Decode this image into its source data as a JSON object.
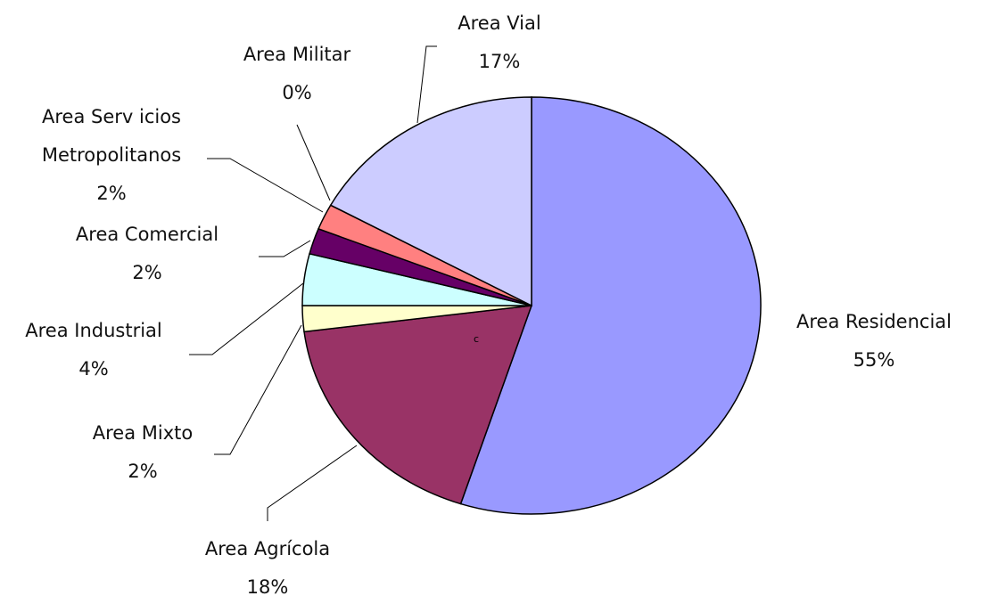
{
  "chart_data": {
    "type": "pie",
    "categories": [
      "Area Residencial",
      "Area Agrícola",
      "Area Mixto",
      "Area Industrial",
      "Area Comercial",
      "Area Serv icios Metropolitanos",
      "Area Militar",
      "Area Vial"
    ],
    "values": [
      55,
      18,
      2,
      4,
      2,
      2,
      0,
      17
    ],
    "value_labels": [
      "55%",
      "18%",
      "2%",
      "4%",
      "2%",
      "2%",
      "0%",
      "17%"
    ],
    "colors": [
      "#9999ff",
      "#993366",
      "#ffffcc",
      "#ccffff",
      "#660066",
      "#ff8080",
      "#ffffff",
      "#ccccff"
    ],
    "annotation": "c"
  }
}
